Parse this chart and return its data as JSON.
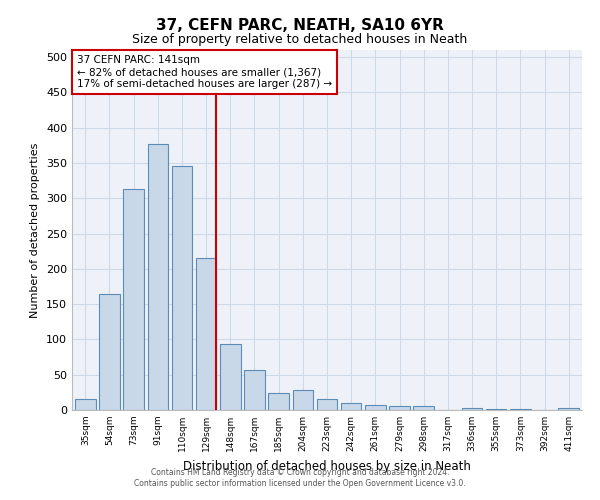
{
  "title": "37, CEFN PARC, NEATH, SA10 6YR",
  "subtitle": "Size of property relative to detached houses in Neath",
  "xlabel": "Distribution of detached houses by size in Neath",
  "ylabel": "Number of detached properties",
  "bins": [
    "35sqm",
    "54sqm",
    "73sqm",
    "91sqm",
    "110sqm",
    "129sqm",
    "148sqm",
    "167sqm",
    "185sqm",
    "204sqm",
    "223sqm",
    "242sqm",
    "261sqm",
    "279sqm",
    "298sqm",
    "317sqm",
    "336sqm",
    "355sqm",
    "373sqm",
    "392sqm",
    "411sqm"
  ],
  "values": [
    15,
    165,
    313,
    377,
    345,
    215,
    94,
    56,
    24,
    28,
    15,
    10,
    7,
    5,
    5,
    0,
    3,
    1,
    1,
    0,
    3
  ],
  "bar_color": "#c8d8e8",
  "bar_edge_color": "#5b8db8",
  "marker_bin_index": 5,
  "marker_color": "#cc0000",
  "annotation_text": "37 CEFN PARC: 141sqm\n← 82% of detached houses are smaller (1,367)\n17% of semi-detached houses are larger (287) →",
  "annotation_box_color": "#ffffff",
  "annotation_box_edge_color": "#cc0000",
  "grid_color": "#cdd8e8",
  "background_color": "#eef2f8",
  "ylim": [
    0,
    510
  ],
  "yticks": [
    0,
    50,
    100,
    150,
    200,
    250,
    300,
    350,
    400,
    450,
    500
  ],
  "footer_line1": "Contains HM Land Registry data © Crown copyright and database right 2024.",
  "footer_line2": "Contains public sector information licensed under the Open Government Licence v3.0."
}
